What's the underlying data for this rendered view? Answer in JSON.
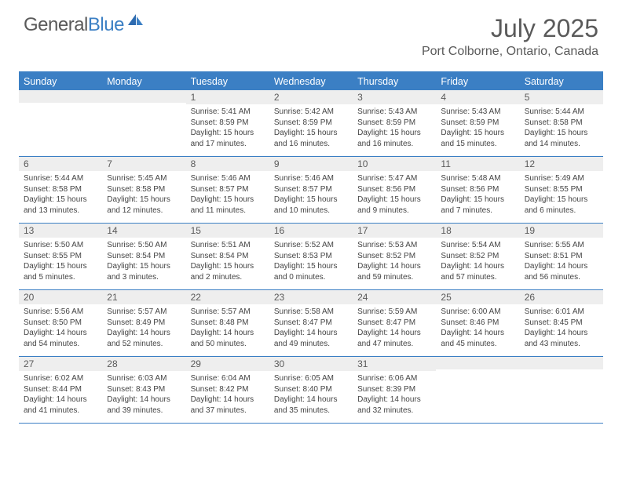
{
  "brand": {
    "part1": "General",
    "part2": "Blue"
  },
  "title": "July 2025",
  "location": "Port Colborne, Ontario, Canada",
  "colors": {
    "accent": "#3b7fc4",
    "header_bg": "#3b7fc4",
    "header_fg": "#ffffff",
    "stripe": "#eeeeee",
    "text": "#5a5a5a",
    "body_text": "#444444"
  },
  "day_names": [
    "Sunday",
    "Monday",
    "Tuesday",
    "Wednesday",
    "Thursday",
    "Friday",
    "Saturday"
  ],
  "weeks": [
    [
      {
        "n": "",
        "lines": []
      },
      {
        "n": "",
        "lines": []
      },
      {
        "n": "1",
        "lines": [
          "Sunrise: 5:41 AM",
          "Sunset: 8:59 PM",
          "Daylight: 15 hours",
          "and 17 minutes."
        ]
      },
      {
        "n": "2",
        "lines": [
          "Sunrise: 5:42 AM",
          "Sunset: 8:59 PM",
          "Daylight: 15 hours",
          "and 16 minutes."
        ]
      },
      {
        "n": "3",
        "lines": [
          "Sunrise: 5:43 AM",
          "Sunset: 8:59 PM",
          "Daylight: 15 hours",
          "and 16 minutes."
        ]
      },
      {
        "n": "4",
        "lines": [
          "Sunrise: 5:43 AM",
          "Sunset: 8:59 PM",
          "Daylight: 15 hours",
          "and 15 minutes."
        ]
      },
      {
        "n": "5",
        "lines": [
          "Sunrise: 5:44 AM",
          "Sunset: 8:58 PM",
          "Daylight: 15 hours",
          "and 14 minutes."
        ]
      }
    ],
    [
      {
        "n": "6",
        "lines": [
          "Sunrise: 5:44 AM",
          "Sunset: 8:58 PM",
          "Daylight: 15 hours",
          "and 13 minutes."
        ]
      },
      {
        "n": "7",
        "lines": [
          "Sunrise: 5:45 AM",
          "Sunset: 8:58 PM",
          "Daylight: 15 hours",
          "and 12 minutes."
        ]
      },
      {
        "n": "8",
        "lines": [
          "Sunrise: 5:46 AM",
          "Sunset: 8:57 PM",
          "Daylight: 15 hours",
          "and 11 minutes."
        ]
      },
      {
        "n": "9",
        "lines": [
          "Sunrise: 5:46 AM",
          "Sunset: 8:57 PM",
          "Daylight: 15 hours",
          "and 10 minutes."
        ]
      },
      {
        "n": "10",
        "lines": [
          "Sunrise: 5:47 AM",
          "Sunset: 8:56 PM",
          "Daylight: 15 hours",
          "and 9 minutes."
        ]
      },
      {
        "n": "11",
        "lines": [
          "Sunrise: 5:48 AM",
          "Sunset: 8:56 PM",
          "Daylight: 15 hours",
          "and 7 minutes."
        ]
      },
      {
        "n": "12",
        "lines": [
          "Sunrise: 5:49 AM",
          "Sunset: 8:55 PM",
          "Daylight: 15 hours",
          "and 6 minutes."
        ]
      }
    ],
    [
      {
        "n": "13",
        "lines": [
          "Sunrise: 5:50 AM",
          "Sunset: 8:55 PM",
          "Daylight: 15 hours",
          "and 5 minutes."
        ]
      },
      {
        "n": "14",
        "lines": [
          "Sunrise: 5:50 AM",
          "Sunset: 8:54 PM",
          "Daylight: 15 hours",
          "and 3 minutes."
        ]
      },
      {
        "n": "15",
        "lines": [
          "Sunrise: 5:51 AM",
          "Sunset: 8:54 PM",
          "Daylight: 15 hours",
          "and 2 minutes."
        ]
      },
      {
        "n": "16",
        "lines": [
          "Sunrise: 5:52 AM",
          "Sunset: 8:53 PM",
          "Daylight: 15 hours",
          "and 0 minutes."
        ]
      },
      {
        "n": "17",
        "lines": [
          "Sunrise: 5:53 AM",
          "Sunset: 8:52 PM",
          "Daylight: 14 hours",
          "and 59 minutes."
        ]
      },
      {
        "n": "18",
        "lines": [
          "Sunrise: 5:54 AM",
          "Sunset: 8:52 PM",
          "Daylight: 14 hours",
          "and 57 minutes."
        ]
      },
      {
        "n": "19",
        "lines": [
          "Sunrise: 5:55 AM",
          "Sunset: 8:51 PM",
          "Daylight: 14 hours",
          "and 56 minutes."
        ]
      }
    ],
    [
      {
        "n": "20",
        "lines": [
          "Sunrise: 5:56 AM",
          "Sunset: 8:50 PM",
          "Daylight: 14 hours",
          "and 54 minutes."
        ]
      },
      {
        "n": "21",
        "lines": [
          "Sunrise: 5:57 AM",
          "Sunset: 8:49 PM",
          "Daylight: 14 hours",
          "and 52 minutes."
        ]
      },
      {
        "n": "22",
        "lines": [
          "Sunrise: 5:57 AM",
          "Sunset: 8:48 PM",
          "Daylight: 14 hours",
          "and 50 minutes."
        ]
      },
      {
        "n": "23",
        "lines": [
          "Sunrise: 5:58 AM",
          "Sunset: 8:47 PM",
          "Daylight: 14 hours",
          "and 49 minutes."
        ]
      },
      {
        "n": "24",
        "lines": [
          "Sunrise: 5:59 AM",
          "Sunset: 8:47 PM",
          "Daylight: 14 hours",
          "and 47 minutes."
        ]
      },
      {
        "n": "25",
        "lines": [
          "Sunrise: 6:00 AM",
          "Sunset: 8:46 PM",
          "Daylight: 14 hours",
          "and 45 minutes."
        ]
      },
      {
        "n": "26",
        "lines": [
          "Sunrise: 6:01 AM",
          "Sunset: 8:45 PM",
          "Daylight: 14 hours",
          "and 43 minutes."
        ]
      }
    ],
    [
      {
        "n": "27",
        "lines": [
          "Sunrise: 6:02 AM",
          "Sunset: 8:44 PM",
          "Daylight: 14 hours",
          "and 41 minutes."
        ]
      },
      {
        "n": "28",
        "lines": [
          "Sunrise: 6:03 AM",
          "Sunset: 8:43 PM",
          "Daylight: 14 hours",
          "and 39 minutes."
        ]
      },
      {
        "n": "29",
        "lines": [
          "Sunrise: 6:04 AM",
          "Sunset: 8:42 PM",
          "Daylight: 14 hours",
          "and 37 minutes."
        ]
      },
      {
        "n": "30",
        "lines": [
          "Sunrise: 6:05 AM",
          "Sunset: 8:40 PM",
          "Daylight: 14 hours",
          "and 35 minutes."
        ]
      },
      {
        "n": "31",
        "lines": [
          "Sunrise: 6:06 AM",
          "Sunset: 8:39 PM",
          "Daylight: 14 hours",
          "and 32 minutes."
        ]
      },
      {
        "n": "",
        "lines": []
      },
      {
        "n": "",
        "lines": []
      }
    ]
  ]
}
